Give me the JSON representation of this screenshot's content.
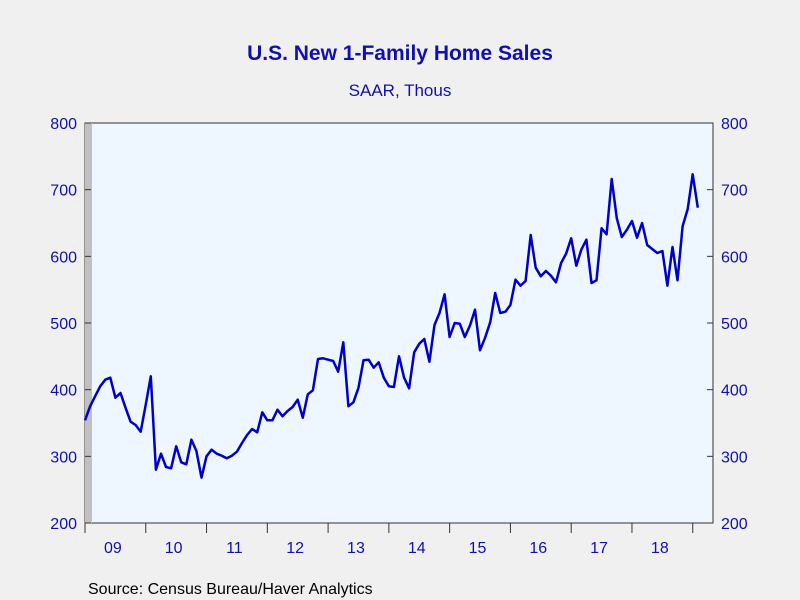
{
  "chart_data": {
    "type": "line",
    "title": "U.S. New 1-Family Home Sales",
    "subtitle": "SAAR, Thous",
    "source": "Source:  Census Bureau/Haver Analytics",
    "xlabel": "",
    "ylabel": "",
    "ylim": [
      200,
      800
    ],
    "yticks": [
      200,
      300,
      400,
      500,
      600,
      700,
      800
    ],
    "xticks": [
      "09",
      "10",
      "11",
      "12",
      "13",
      "14",
      "15",
      "16",
      "17",
      "18"
    ],
    "x_start": "2009-01",
    "x_end": "2019-05",
    "grid": false,
    "legend": "none",
    "colors": {
      "line": "#0000c8",
      "plot_bg": "#eef6ff",
      "page_bg": "#f0f0f0",
      "text": "#1010b0",
      "recession_shade": "#c0c0c0"
    },
    "series": [
      {
        "values": [
          354,
          375,
          390,
          405,
          415,
          418,
          388,
          395,
          373,
          352,
          347,
          337,
          378,
          420,
          280,
          304,
          284,
          282,
          315,
          291,
          288,
          325,
          308,
          268,
          300,
          310,
          304,
          301,
          297,
          301,
          307,
          320,
          332,
          341,
          336,
          366,
          354,
          354,
          370,
          360,
          368,
          374,
          385,
          358,
          393,
          399,
          446,
          447,
          445,
          443,
          427,
          471,
          375,
          381,
          403,
          444,
          445,
          433,
          441,
          418,
          405,
          404,
          450,
          418,
          402,
          456,
          469,
          476,
          442,
          497,
          515,
          543,
          479,
          500,
          499,
          479,
          496,
          520,
          459,
          478,
          501,
          545,
          515,
          517,
          527,
          565,
          556,
          563,
          632,
          583,
          570,
          578,
          571,
          561,
          590,
          604,
          627,
          586,
          610,
          625,
          560,
          564,
          642,
          633,
          716,
          657,
          629,
          640,
          653,
          628,
          650,
          617,
          611,
          605,
          608,
          556,
          614,
          564,
          645,
          671,
          723,
          673
        ]
      }
    ]
  }
}
